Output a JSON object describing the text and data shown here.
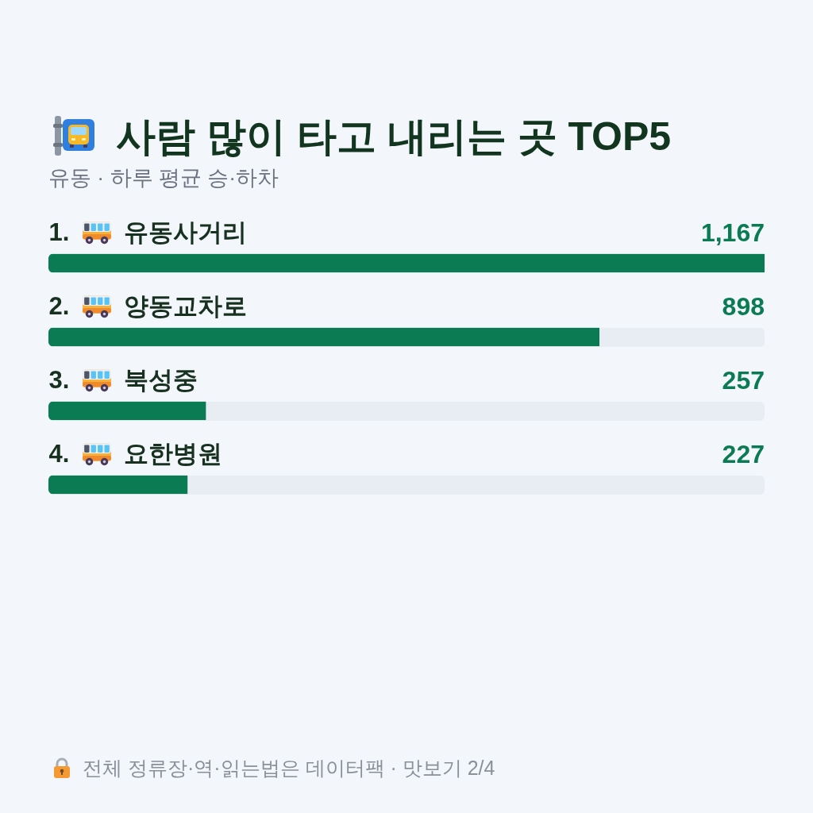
{
  "chart_data": {
    "type": "bar",
    "orientation": "horizontal",
    "title": "사람 많이 타고 내리는 곳 TOP5",
    "subtitle": "유동 · 하루 평균 승·하차",
    "categories": [
      "1. 유동사거리",
      "2. 양동교차로",
      "3. 북성중",
      "4. 요한병원"
    ],
    "values": [
      1167,
      898,
      257,
      227
    ],
    "value_labels": [
      "1,167",
      "898",
      "257",
      "227"
    ],
    "color": "#0a7b52",
    "tick_labels": "y",
    "annotations": [
      "전체 정류장·역·읽는법은 데이터팩 · 맛보기 2/4"
    ]
  }
}
